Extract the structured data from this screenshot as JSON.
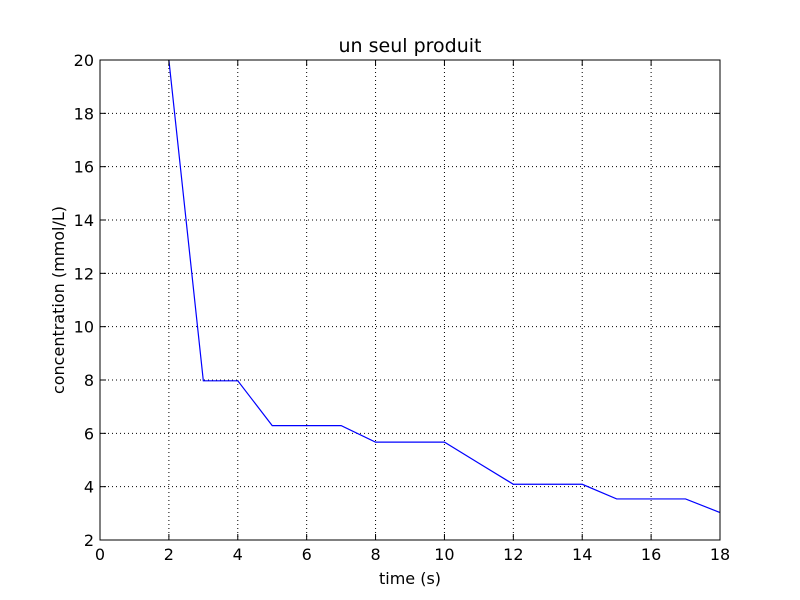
{
  "chart_data": {
    "type": "line",
    "title": "un seul produit",
    "xlabel": "time (s)",
    "ylabel": "concentration (mmol/L)",
    "xlim": [
      0,
      18
    ],
    "ylim": [
      2,
      20
    ],
    "xticks": [
      0,
      2,
      4,
      6,
      8,
      10,
      12,
      14,
      16,
      18
    ],
    "yticks": [
      2,
      4,
      6,
      8,
      10,
      12,
      14,
      16,
      18,
      20
    ],
    "grid": true,
    "series": [
      {
        "color": "#0000ff",
        "x": [
          2,
          3,
          4,
          5,
          6,
          7,
          8,
          9,
          10,
          11,
          12,
          13,
          14,
          15,
          16,
          17,
          18
        ],
        "y": [
          20,
          7.97,
          7.97,
          6.29,
          6.29,
          6.29,
          5.67,
          5.67,
          5.67,
          4.88,
          4.09,
          4.09,
          4.09,
          3.54,
          3.54,
          3.54,
          3.03
        ]
      }
    ]
  }
}
